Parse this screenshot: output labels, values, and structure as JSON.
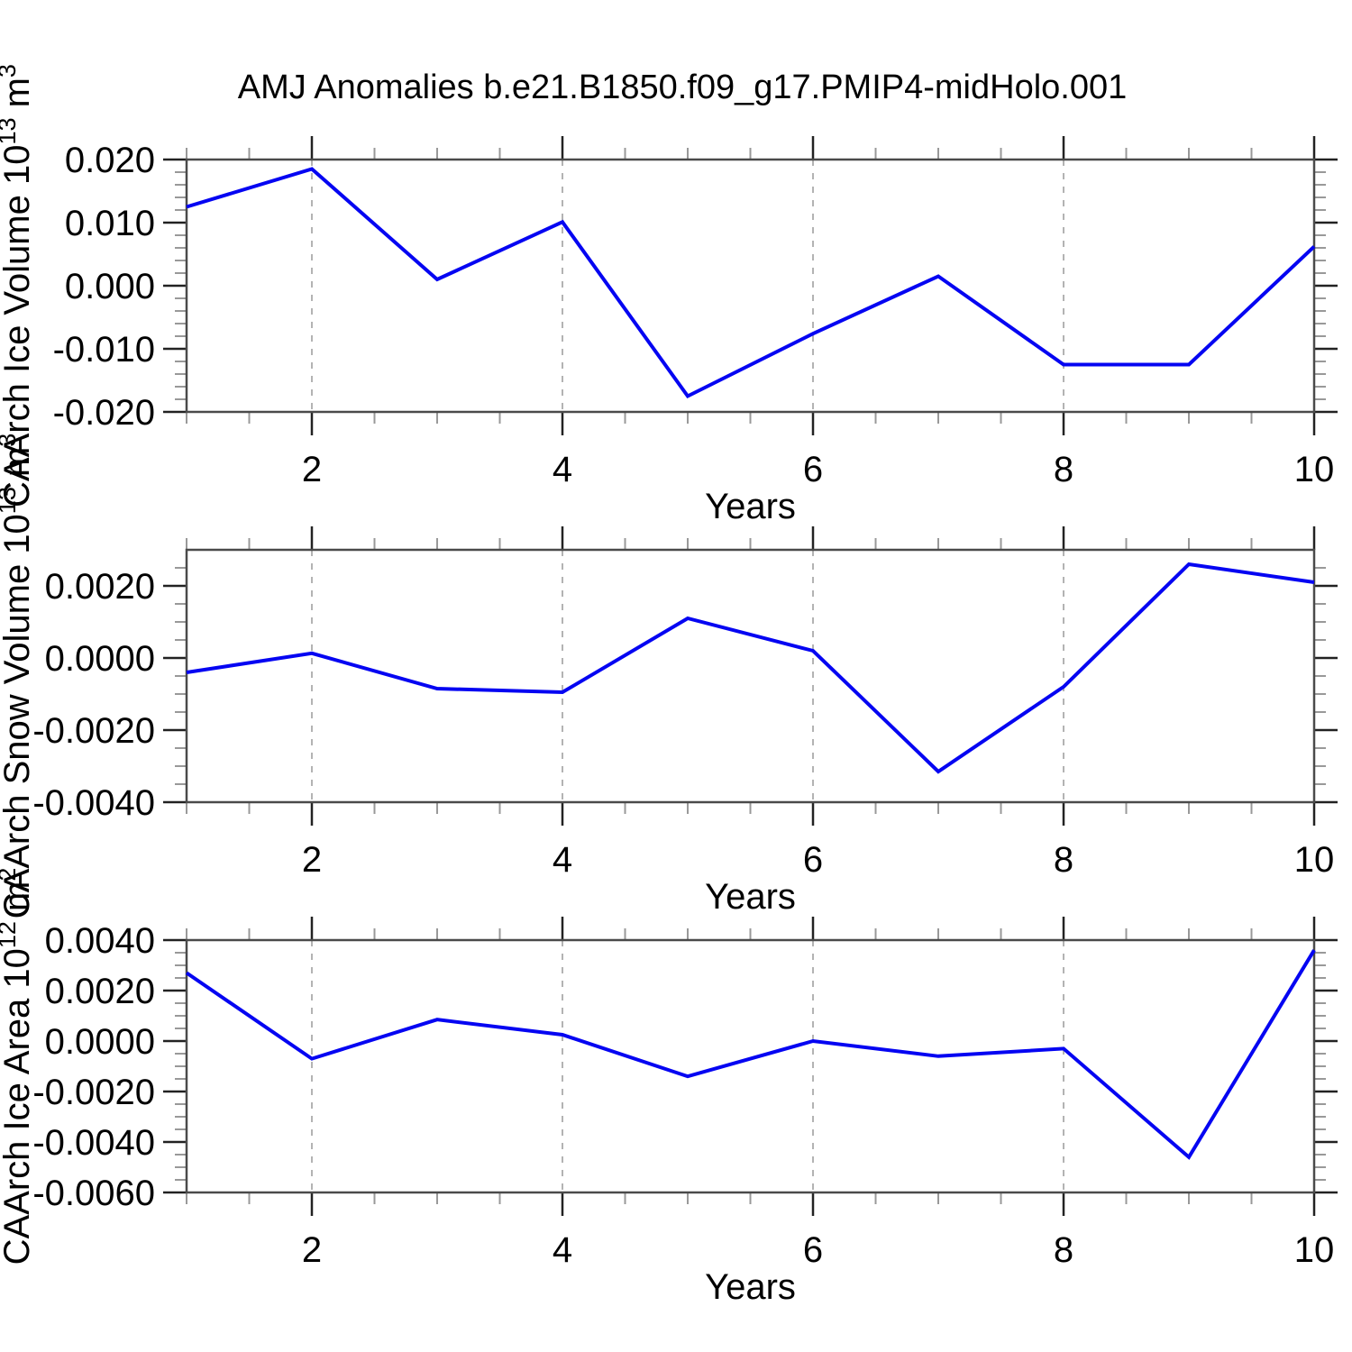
{
  "figure": {
    "title": "AMJ Anomalies b.e21.B1850.f09_g17.PMIP4-midHolo.001",
    "background_color": "#ffffff",
    "line_color": "#0505f2",
    "grid_color": "#b3b3b3",
    "axis_color": "#4a4a4a",
    "major_tick_color": "#222222",
    "minor_tick_color": "#999999",
    "text_color": "#000000"
  },
  "chart_data": [
    {
      "type": "line",
      "series_name": "CAArch Ice Volume anomaly",
      "xlabel": "Years",
      "ylabel_text": "CAArch Ice Volume 10^13 m^3",
      "ylabel_parts": [
        "CAArch Ice Volume 10",
        "13",
        " m",
        "3"
      ],
      "x": [
        1,
        2,
        3,
        4,
        5,
        6,
        7,
        8,
        9,
        10
      ],
      "values": [
        0.0125,
        0.0185,
        0.001,
        0.0101,
        -0.0175,
        -0.0076,
        0.0015,
        -0.0125,
        -0.0125,
        0.0062
      ],
      "xlim": [
        1,
        10
      ],
      "ylim": [
        -0.02,
        0.02
      ],
      "ytick_values": [
        0.02,
        0.01,
        0.0,
        -0.01,
        -0.02
      ],
      "ytick_labels": [
        "0.020",
        "0.010",
        "0.000",
        "-0.010",
        "-0.020"
      ],
      "yminor_step": 0.002,
      "xtick_values": [
        2,
        4,
        6,
        8,
        10
      ],
      "xtick_labels": [
        "2",
        "4",
        "6",
        "8",
        "10"
      ],
      "xminor_step": 0.5,
      "grid_x": [
        2,
        4,
        6,
        8
      ],
      "grid_style": "dashed",
      "legend_position": "none"
    },
    {
      "type": "line",
      "series_name": "CAArch Snow Volume anomaly",
      "xlabel": "Years",
      "ylabel_text": "CAArch Snow Volume 10^13 m^3",
      "ylabel_parts": [
        "CAArch Snow Volume 10",
        "13",
        " m",
        "3"
      ],
      "x": [
        1,
        2,
        3,
        4,
        5,
        6,
        7,
        8,
        9,
        10
      ],
      "values": [
        -0.0004,
        0.00013,
        -0.00085,
        -0.00095,
        0.0011,
        0.0002,
        -0.00315,
        -0.0008,
        0.0026,
        0.0021
      ],
      "xlim": [
        1,
        10
      ],
      "ylim": [
        -0.004,
        0.003
      ],
      "ytick_values": [
        0.002,
        0.0,
        -0.002,
        -0.004
      ],
      "ytick_labels": [
        "0.0020",
        "0.0000",
        "-0.0020",
        "-0.0040"
      ],
      "yminor_step": 0.0005,
      "xtick_values": [
        2,
        4,
        6,
        8,
        10
      ],
      "xtick_labels": [
        "2",
        "4",
        "6",
        "8",
        "10"
      ],
      "xminor_step": 0.5,
      "grid_x": [
        2,
        4,
        6,
        8
      ],
      "grid_style": "dashed",
      "legend_position": "none"
    },
    {
      "type": "line",
      "series_name": "CAArch Ice Area anomaly",
      "xlabel": "Years",
      "ylabel_text": "CAArch Ice Area 10^12 m^2",
      "ylabel_parts": [
        "CAArch Ice Area 10",
        "12",
        " m",
        "2"
      ],
      "x": [
        1,
        2,
        3,
        4,
        5,
        6,
        7,
        8,
        9,
        10
      ],
      "values": [
        0.0027,
        -0.0007,
        0.00085,
        0.00025,
        -0.0014,
        0.0,
        -0.0006,
        -0.0003,
        -0.0046,
        0.0036
      ],
      "xlim": [
        1,
        10
      ],
      "ylim": [
        -0.006,
        0.004
      ],
      "ytick_values": [
        0.004,
        0.002,
        0.0,
        -0.002,
        -0.004,
        -0.006
      ],
      "ytick_labels": [
        "0.0040",
        "0.0020",
        "0.0000",
        "-0.0020",
        "-0.0040",
        "-0.0060"
      ],
      "yminor_step": 0.0005,
      "xtick_values": [
        2,
        4,
        6,
        8,
        10
      ],
      "xtick_labels": [
        "2",
        "4",
        "6",
        "8",
        "10"
      ],
      "xminor_step": 0.5,
      "grid_x": [
        2,
        4,
        6,
        8
      ],
      "grid_style": "dashed",
      "legend_position": "none"
    }
  ]
}
